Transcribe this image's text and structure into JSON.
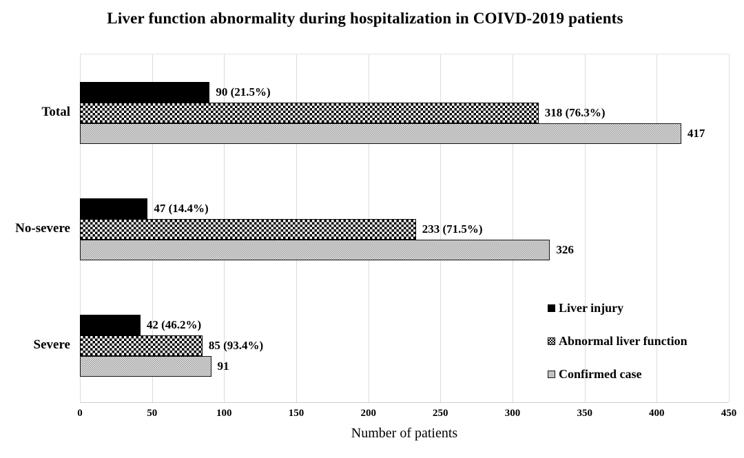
{
  "title": "Liver function abnormality during hospitalization in COIVD-2019 patients",
  "chart_data": {
    "type": "bar",
    "orientation": "horizontal",
    "title": "Liver function abnormality during hospitalization in COIVD-2019 patients",
    "categories": [
      "Total",
      "No-severe",
      "Severe"
    ],
    "series": [
      {
        "name": "Liver injury",
        "pattern": "solid-black",
        "values": [
          90,
          47,
          42
        ],
        "labels": [
          "90 (21.5%)",
          "47 (14.4%)",
          "42 (46.2%)"
        ]
      },
      {
        "name": "Abnormal liver function",
        "pattern": "checker-dark",
        "values": [
          318,
          233,
          85
        ],
        "labels": [
          "318 (76.3%)",
          "233 (71.5%)",
          "85 (93.4%)"
        ]
      },
      {
        "name": "Confirmed case",
        "pattern": "checker-light",
        "values": [
          417,
          326,
          91
        ],
        "labels": [
          "417",
          "326",
          "91"
        ]
      }
    ],
    "xlabel": "Number of patients",
    "ylabel": "",
    "xlim": [
      0,
      450
    ],
    "xticks": [
      0,
      50,
      100,
      150,
      200,
      250,
      300,
      350,
      400,
      450
    ],
    "grid": true,
    "legend_position": "inside-bottom-right"
  },
  "colors": {
    "background": "#ffffff",
    "text": "#000000",
    "gridline": "#dcdcdc",
    "axis_line": "#cfcfcf",
    "bar_solid": "#000000",
    "pattern_dark_fg": "#000000",
    "pattern_light_fg": "#9b9b9b",
    "pattern_light_bg": "#eaeaea"
  }
}
